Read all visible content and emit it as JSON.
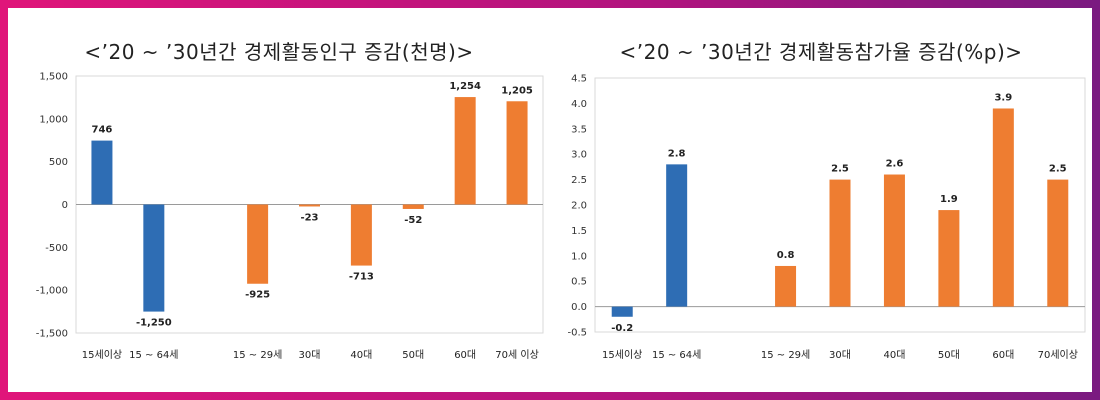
{
  "charts": [
    {
      "type": "bar",
      "title": "<’20 ~ ’30년간 경제활동인구 증감(천명)>",
      "categories": [
        "15세이상",
        "15 ~ 64세",
        "",
        "15 ~ 29세",
        "30대",
        "40대",
        "50대",
        "60대",
        "70세 이상"
      ],
      "values": [
        746,
        -1250,
        null,
        -925,
        -23,
        -713,
        -52,
        1254,
        1205
      ],
      "data_labels": [
        "746",
        "-1,250",
        "",
        "-925",
        "-23",
        "-713",
        "-52",
        "1,254",
        "1,205"
      ],
      "bar_colors": [
        "#2e6db4",
        "#2e6db4",
        null,
        "#ee7d31",
        "#ee7d31",
        "#ee7d31",
        "#ee7d31",
        "#ee7d31",
        "#ee7d31"
      ],
      "ylim": [
        -1500,
        1500
      ],
      "yticks": [
        1500,
        1000,
        500,
        0,
        -500,
        -1000,
        -1500
      ],
      "ytick_labels": [
        "1,500",
        "1,000",
        "500",
        "0",
        "-500",
        "-1,000",
        "-1,500"
      ]
    },
    {
      "type": "bar",
      "title": "<’20 ~ ’30년간 경제활동참가율 증감(%p)>",
      "categories": [
        "15세이상",
        "15 ~ 64세",
        "",
        "15 ~ 29세",
        "30대",
        "40대",
        "50대",
        "60대",
        "70세이상"
      ],
      "values": [
        -0.2,
        2.8,
        null,
        0.8,
        2.5,
        2.6,
        1.9,
        3.9,
        2.5
      ],
      "data_labels": [
        "-0.2",
        "2.8",
        "",
        "0.8",
        "2.5",
        "2.6",
        "1.9",
        "3.9",
        "2.5"
      ],
      "bar_colors": [
        "#2e6db4",
        "#2e6db4",
        null,
        "#ee7d31",
        "#ee7d31",
        "#ee7d31",
        "#ee7d31",
        "#ee7d31",
        "#ee7d31"
      ],
      "ylim": [
        -0.5,
        4.5
      ],
      "yticks": [
        4.5,
        4.0,
        3.5,
        3.0,
        2.5,
        2.0,
        1.5,
        1.0,
        0.5,
        0.0,
        -0.5
      ],
      "ytick_labels": [
        "4.5",
        "4.0",
        "3.5",
        "3.0",
        "2.5",
        "2.0",
        "1.5",
        "1.0",
        "0.5",
        "0.0",
        "-0.5"
      ]
    }
  ]
}
